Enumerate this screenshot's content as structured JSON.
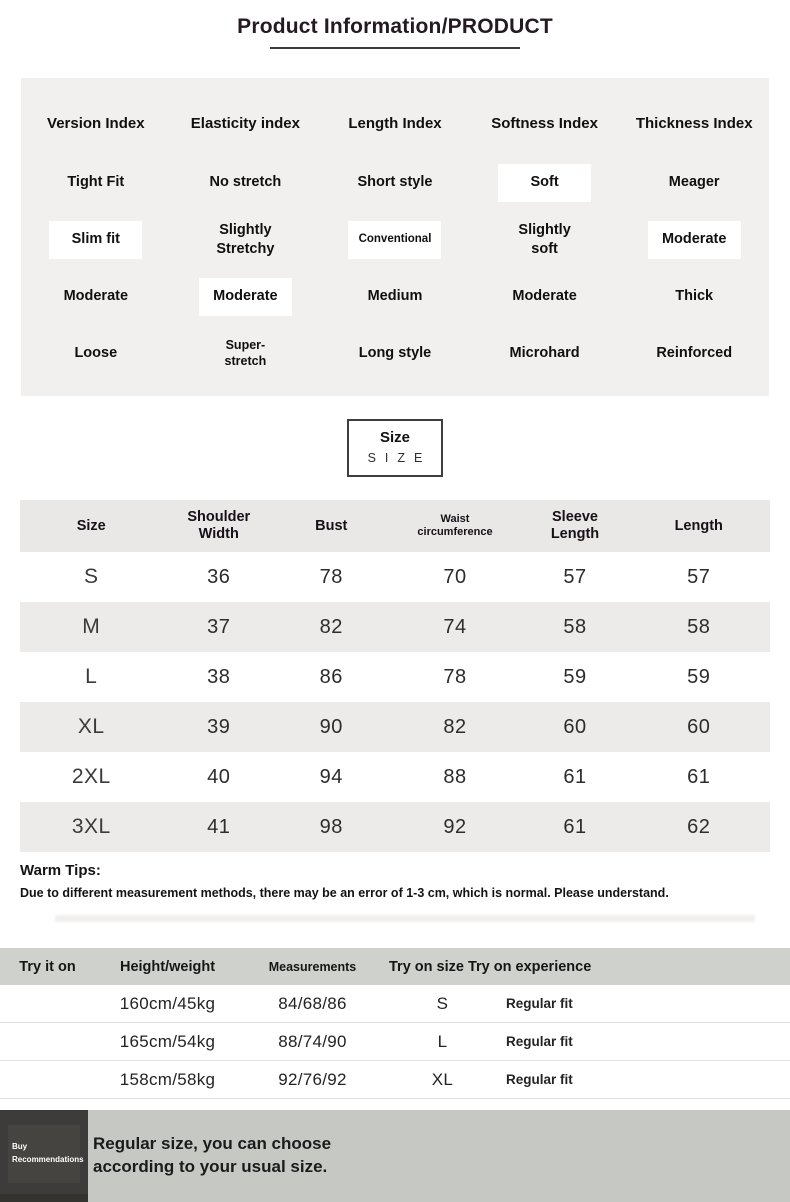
{
  "page": {
    "title": "Product Information/PRODUCT"
  },
  "indexes": {
    "columns": [
      {
        "label": "Version Index",
        "options": [
          {
            "label": "Tight Fit",
            "selected": false
          },
          {
            "label": "Slim fit",
            "selected": true
          },
          {
            "label": "Moderate",
            "selected": false
          },
          {
            "label": "Loose",
            "selected": false
          }
        ]
      },
      {
        "label": "Elasticity index",
        "options": [
          {
            "label": "No stretch",
            "selected": false
          },
          {
            "label": "Slightly\nStretchy",
            "selected": false
          },
          {
            "label": "Moderate",
            "selected": true
          },
          {
            "label": "Super-\nstretch",
            "selected": false
          }
        ]
      },
      {
        "label": "Length Index",
        "options": [
          {
            "label": "Short style",
            "selected": false
          },
          {
            "label": "Conventional",
            "selected": true
          },
          {
            "label": "Medium",
            "selected": false
          },
          {
            "label": "Long style",
            "selected": false
          }
        ]
      },
      {
        "label": "Softness Index",
        "options": [
          {
            "label": "Soft",
            "selected": true
          },
          {
            "label": "Slightly\nsoft",
            "selected": false
          },
          {
            "label": "Moderate",
            "selected": false
          },
          {
            "label": "Microhard",
            "selected": false
          }
        ]
      },
      {
        "label": "Thickness Index",
        "options": [
          {
            "label": "Meager",
            "selected": false
          },
          {
            "label": "Moderate",
            "selected": true
          },
          {
            "label": "Thick",
            "selected": false
          },
          {
            "label": "Reinforced",
            "selected": false
          }
        ]
      }
    ]
  },
  "size_badge": {
    "title": "Size",
    "subtitle": "SIZE"
  },
  "size_table": {
    "headers": [
      "Size",
      "Shoulder\nWidth",
      "Bust",
      "Waist\ncircumference",
      "Sleeve\nLength",
      "Length"
    ],
    "rows": [
      [
        "S",
        "36",
        "78",
        "70",
        "57",
        "57"
      ],
      [
        "M",
        "37",
        "82",
        "74",
        "58",
        "58"
      ],
      [
        "L",
        "38",
        "86",
        "78",
        "59",
        "59"
      ],
      [
        "XL",
        "39",
        "90",
        "82",
        "60",
        "60"
      ],
      [
        "2XL",
        "40",
        "94",
        "88",
        "61",
        "61"
      ],
      [
        "3XL",
        "41",
        "98",
        "92",
        "61",
        "62"
      ]
    ]
  },
  "warm_tips": {
    "title": "Warm Tips:",
    "text": "Due to different measurement methods, there may be an error of 1-3 cm, which is normal. Please understand."
  },
  "try_on": {
    "headers": [
      "Try it on",
      "Height/weight",
      "Measurements",
      "Try on size Try on experience"
    ],
    "rows": [
      [
        "160cm/45kg",
        "84/68/86",
        "S",
        "Regular fit"
      ],
      [
        "165cm/54kg",
        "88/74/90",
        "L",
        "Regular fit"
      ],
      [
        "158cm/58kg",
        "92/76/92",
        "XL",
        "Regular fit"
      ]
    ]
  },
  "recommendation": {
    "badge": "Buy\nRecommendations",
    "text": "Regular size, you can choose according to your usual size."
  }
}
